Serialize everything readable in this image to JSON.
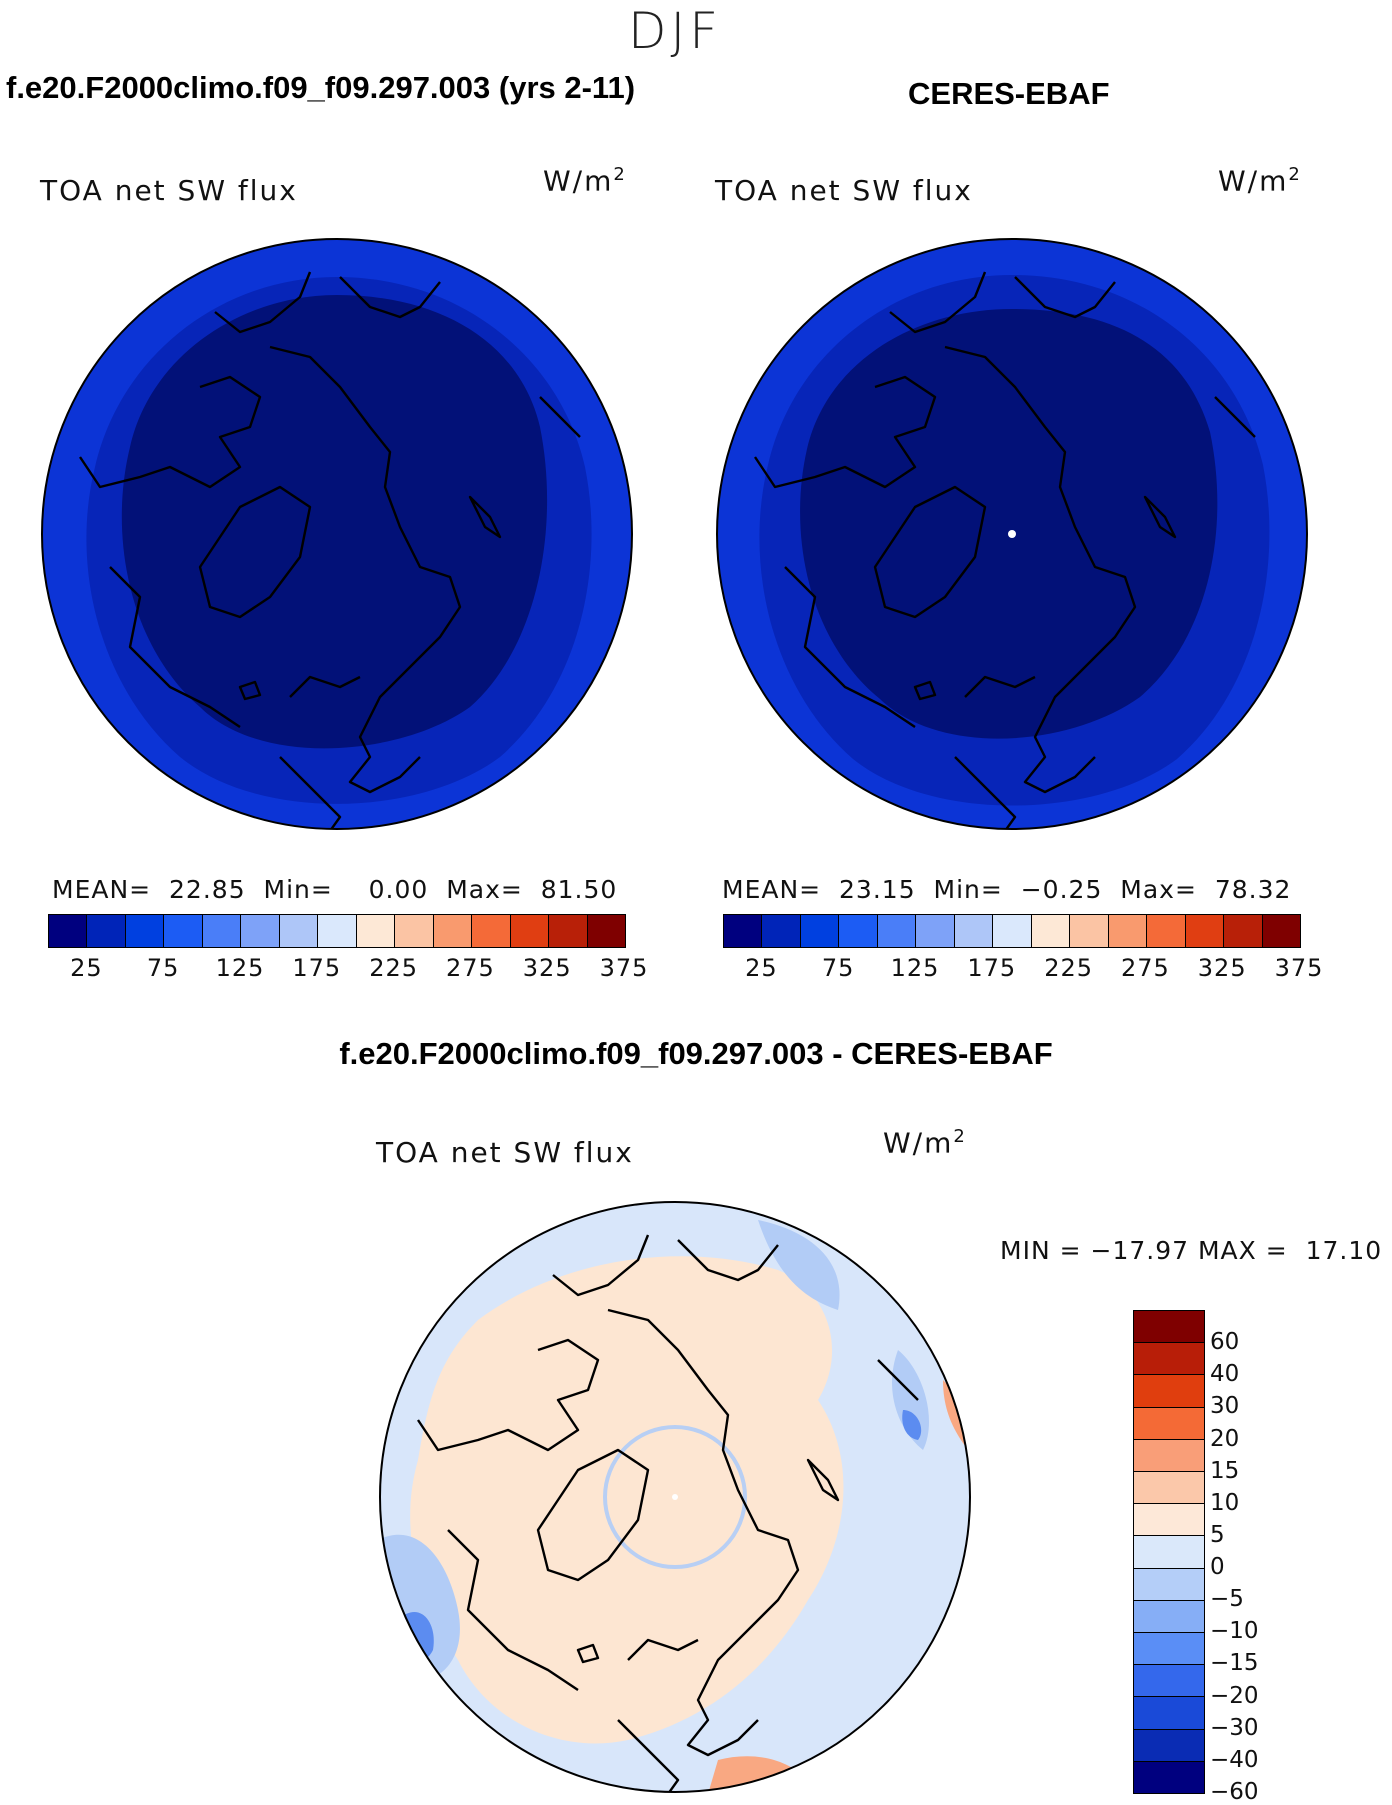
{
  "season": "DJF",
  "panels": {
    "model": {
      "title": "f.e20.F2000climo.f09_f09.297.003 (yrs 2-11)",
      "subtitle": "TOA net SW flux",
      "units": "W/m",
      "units_exp": "2",
      "stats": {
        "mean_label": "MEAN=",
        "mean": "22.85",
        "min_label": "Min=",
        "min": "0.00",
        "max_label": "Max=",
        "max": "81.50"
      }
    },
    "obs": {
      "title": "CERES-EBAF",
      "subtitle": "TOA net SW flux",
      "units": "W/m",
      "units_exp": "2",
      "stats": {
        "mean_label": "MEAN=",
        "mean": "23.15",
        "min_label": "Min=",
        "min": "−0.25",
        "max_label": "Max=",
        "max": "78.32"
      }
    },
    "diff": {
      "title": "f.e20.F2000climo.f09_f09.297.003 - CERES-EBAF",
      "subtitle": "TOA net SW flux",
      "units": "W/m",
      "units_exp": "2",
      "minmax": {
        "min_label": "MIN =",
        "min": "−17.97",
        "max_label": "MAX =",
        "max": "17.10"
      }
    }
  },
  "colorbar_abs": {
    "colors": [
      "#00007f",
      "#0024b8",
      "#0040e0",
      "#1c5cf4",
      "#4a7ef8",
      "#7ea2f8",
      "#aec6f8",
      "#dae8fc",
      "#fde8d6",
      "#fbc4a4",
      "#f99a6e",
      "#f46a38",
      "#e03e12",
      "#b82008",
      "#7f0000"
    ],
    "tick_labels": [
      "25",
      "75",
      "125",
      "175",
      "225",
      "275",
      "325",
      "375"
    ]
  },
  "colorbar_diff": {
    "colors": [
      "#7f0000",
      "#b81e08",
      "#e03e0e",
      "#f46a36",
      "#f99e78",
      "#fbc8aa",
      "#fde8d8",
      "#dae8fa",
      "#b4cef8",
      "#86aef6",
      "#5a8ef6",
      "#3468ec",
      "#1a4ad8",
      "#0a2cb4",
      "#00007f"
    ],
    "labels": [
      "60",
      "40",
      "30",
      "20",
      "15",
      "10",
      "5",
      "0",
      "−5",
      "−10",
      "−15",
      "−20",
      "−30",
      "−40",
      "−60"
    ]
  },
  "map_colors": {
    "abs_inner": "#021178",
    "abs_outer": "#0c34d6",
    "abs_mid": "#0725b8",
    "diff_base": "#fde6d2",
    "diff_neg": "#d8e6fa",
    "diff_neg2": "#b2ccf6",
    "diff_neg3": "#5c8cf0",
    "diff_pos2": "#f9a882"
  }
}
